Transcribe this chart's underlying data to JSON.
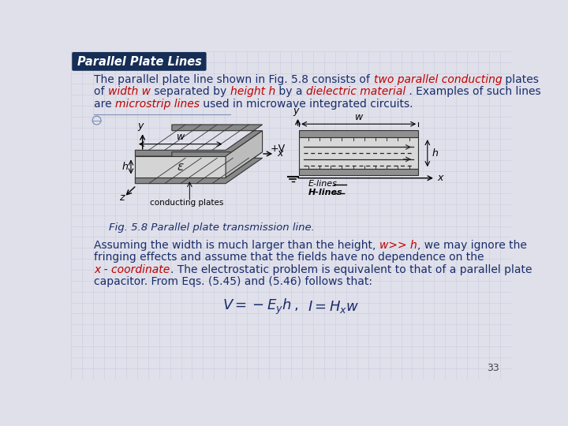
{
  "title": "Parallel Plate Lines",
  "title_bg": "#162d55",
  "title_color": "#ffffff",
  "page_bg": "#dfe0ea",
  "content_bg": "#ecedf4",
  "body_color": "#1a2d6b",
  "red_color": "#c00000",
  "grid_color": "#c8c8dc",
  "fig_caption": "Fig. 5.8 Parallel plate transmission line.",
  "page_num": "33"
}
